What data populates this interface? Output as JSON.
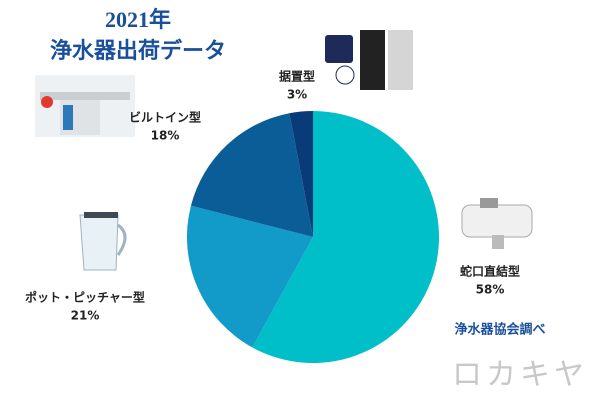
{
  "chart_data": {
    "type": "pie",
    "title": "2021年",
    "subtitle": "浄水器出荷データ",
    "categories": [
      "蛇口直結型",
      "ポット・ピッチャー型",
      "ビルトイン型",
      "据置型"
    ],
    "values": [
      58,
      21,
      18,
      3
    ],
    "value_labels": [
      "58%",
      "21%",
      "18%",
      "3%"
    ],
    "colors": [
      "#00bfc9",
      "#129ac8",
      "#0b5d97",
      "#0a3b79"
    ],
    "source": "浄水器協会調べ",
    "watermark": "ロカキヤ"
  }
}
